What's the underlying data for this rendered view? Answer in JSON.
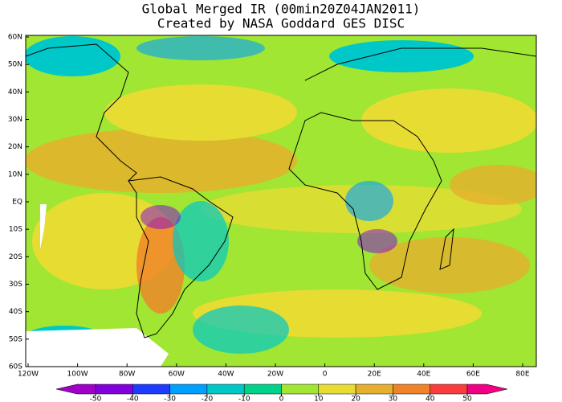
{
  "title": "Global Merged IR (00min20Z04JAN2011)",
  "subtitle": "Created by NASA Goddard GES DISC",
  "lat_labels": [
    "60N",
    "50N",
    "40N",
    "30N",
    "20N",
    "10N",
    "EQ",
    "10S",
    "20S",
    "30S",
    "40S",
    "50S",
    "60S"
  ],
  "lon_labels": [
    "120W",
    "100W",
    "80W",
    "60W",
    "40W",
    "20W",
    "0",
    "20E",
    "40E",
    "60E",
    "80E"
  ],
  "colorbar": {
    "labels": [
      -50,
      -40,
      -30,
      -20,
      -10,
      0,
      10,
      20,
      30,
      40,
      50
    ],
    "colors": [
      "#a000c8",
      "#8200dc",
      "#1e3cff",
      "#00a0ff",
      "#00c8c8",
      "#00d28c",
      "#a0e632",
      "#e6dc32",
      "#e6af2d",
      "#f08228",
      "#fa3c3c",
      "#f00082"
    ]
  }
}
